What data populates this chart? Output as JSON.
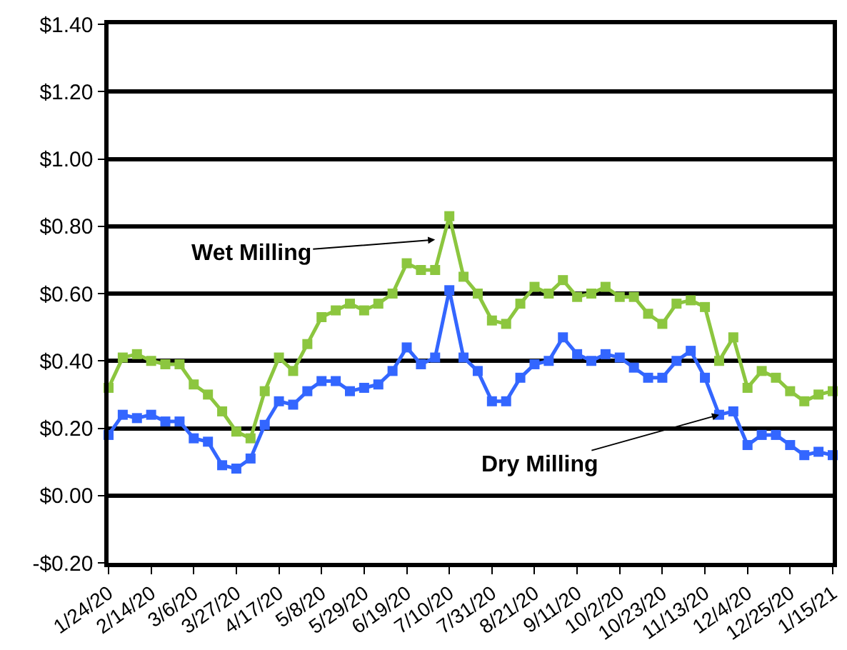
{
  "chart_data": {
    "type": "line",
    "x": [
      "2020-01-24",
      "2020-01-31",
      "2020-02-07",
      "2020-02-14",
      "2020-02-21",
      "2020-02-28",
      "2020-03-06",
      "2020-03-13",
      "2020-03-20",
      "2020-03-27",
      "2020-04-03",
      "2020-04-10",
      "2020-04-17",
      "2020-04-24",
      "2020-05-01",
      "2020-05-08",
      "2020-05-15",
      "2020-05-22",
      "2020-05-29",
      "2020-06-05",
      "2020-06-12",
      "2020-06-19",
      "2020-06-26",
      "2020-07-03",
      "2020-07-10",
      "2020-07-17",
      "2020-07-24",
      "2020-07-31",
      "2020-08-07",
      "2020-08-14",
      "2020-08-21",
      "2020-08-28",
      "2020-09-04",
      "2020-09-11",
      "2020-09-18",
      "2020-09-25",
      "2020-10-02",
      "2020-10-09",
      "2020-10-16",
      "2020-10-23",
      "2020-10-30",
      "2020-11-06",
      "2020-11-13",
      "2020-11-20",
      "2020-11-27",
      "2020-12-04",
      "2020-12-11",
      "2020-12-18",
      "2020-12-25",
      "2021-01-01",
      "2021-01-08",
      "2021-01-15"
    ],
    "series": [
      {
        "color": "#8cc63f",
        "values": [
          0.32,
          0.41,
          0.42,
          0.4,
          0.39,
          0.39,
          0.33,
          0.3,
          0.25,
          0.19,
          0.17,
          0.31,
          0.41,
          0.37,
          0.45,
          0.53,
          0.55,
          0.57,
          0.55,
          0.57,
          0.6,
          0.69,
          0.67,
          0.67,
          0.83,
          0.65,
          0.6,
          0.52,
          0.51,
          0.57,
          0.62,
          0.6,
          0.64,
          0.59,
          0.6,
          0.62,
          0.59,
          0.59,
          0.54,
          0.51,
          0.57,
          0.58,
          0.56,
          0.4,
          0.47,
          0.32,
          0.37,
          0.35,
          0.31,
          0.28,
          0.3,
          0.31
        ]
      },
      {
        "color": "#3366ff",
        "values": [
          0.18,
          0.24,
          0.23,
          0.24,
          0.22,
          0.22,
          0.17,
          0.16,
          0.09,
          0.08,
          0.11,
          0.21,
          0.28,
          0.27,
          0.31,
          0.34,
          0.34,
          0.31,
          0.32,
          0.33,
          0.37,
          0.44,
          0.39,
          0.41,
          0.61,
          0.41,
          0.37,
          0.28,
          0.28,
          0.35,
          0.39,
          0.4,
          0.47,
          0.42,
          0.4,
          0.42,
          0.41,
          0.38,
          0.35,
          0.35,
          0.4,
          0.43,
          0.35,
          0.24,
          0.25,
          0.15,
          0.18,
          0.18,
          0.15,
          0.12,
          0.13,
          0.12
        ]
      }
    ],
    "xlim": [
      "2020-01-24",
      "2021-01-15"
    ],
    "xticks": [
      {
        "value": "2020-01-24",
        "label": "1/24/20"
      },
      {
        "value": "2020-02-14",
        "label": "2/14/20"
      },
      {
        "value": "2020-03-06",
        "label": "3/6/20"
      },
      {
        "value": "2020-03-27",
        "label": "3/27/20"
      },
      {
        "value": "2020-04-17",
        "label": "4/17/20"
      },
      {
        "value": "2020-05-08",
        "label": "5/8/20"
      },
      {
        "value": "2020-05-29",
        "label": "5/29/20"
      },
      {
        "value": "2020-06-19",
        "label": "6/19/20"
      },
      {
        "value": "2020-07-10",
        "label": "7/10/20"
      },
      {
        "value": "2020-07-31",
        "label": "7/31/20"
      },
      {
        "value": "2020-08-21",
        "label": "8/21/20"
      },
      {
        "value": "2020-09-11",
        "label": "9/11/20"
      },
      {
        "value": "2020-10-02",
        "label": "10/2/20"
      },
      {
        "value": "2020-10-23",
        "label": "10/23/20"
      },
      {
        "value": "2020-11-13",
        "label": "11/13/20"
      },
      {
        "value": "2020-12-04",
        "label": "12/4/20"
      },
      {
        "value": "2020-12-25",
        "label": "12/25/20"
      },
      {
        "value": "2021-01-15",
        "label": "1/15/21"
      }
    ],
    "ylim": [
      -0.2,
      1.4
    ],
    "yticks": [
      {
        "value": -0.2,
        "label": "-$0.20"
      },
      {
        "value": 0,
        "label": "$0.00"
      },
      {
        "value": 0.2,
        "label": "$0.20"
      },
      {
        "value": 0.4,
        "label": "$0.40"
      },
      {
        "value": 0.6,
        "label": "$0.60"
      },
      {
        "value": 0.8,
        "label": "$0.80"
      },
      {
        "value": 1.0,
        "label": "$1.00"
      },
      {
        "value": 1.2,
        "label": "$1.20"
      },
      {
        "value": 1.4,
        "label": "$1.40"
      }
    ],
    "annotations": [
      {
        "text": "Wet Milling",
        "x": "2020-07-03",
        "y": 0.76
      },
      {
        "text": "Dry Milling",
        "x": "2020-11-20",
        "y": 0.24
      }
    ],
    "grid": "y",
    "marker": "square",
    "line_style": "solid"
  }
}
